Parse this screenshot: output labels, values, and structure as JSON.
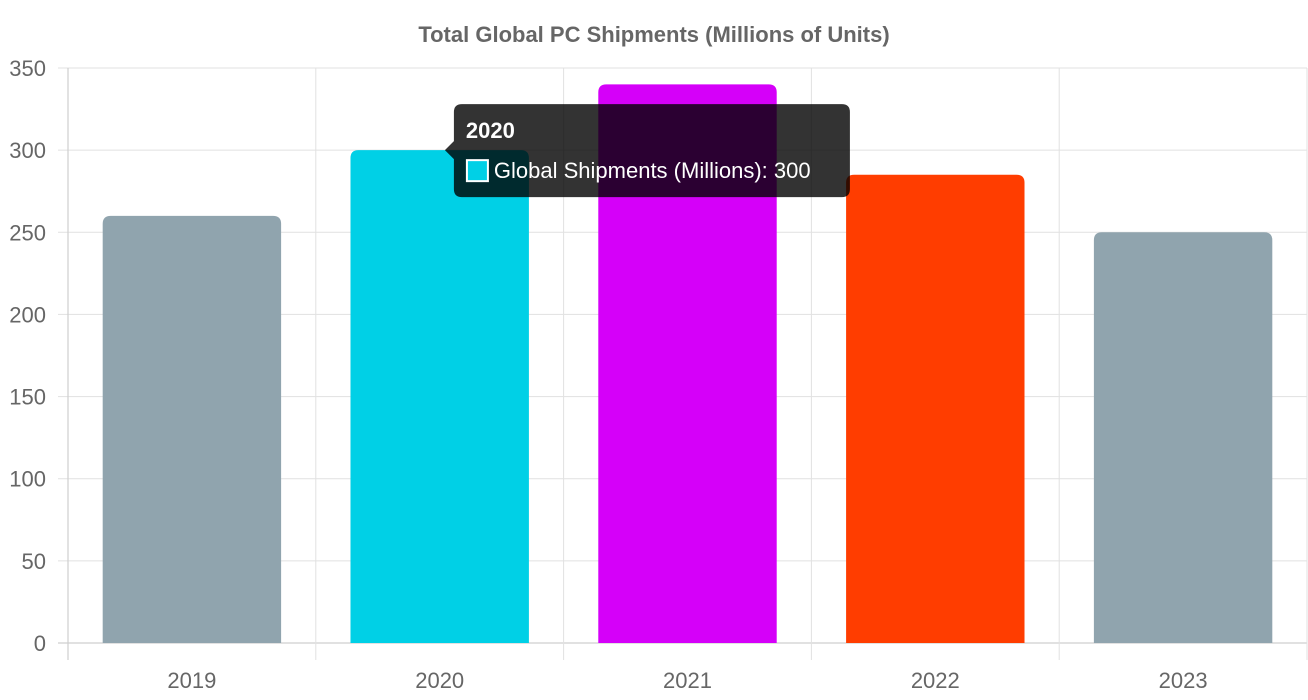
{
  "chart_data": {
    "type": "bar",
    "title": "Total Global PC Shipments (Millions of Units)",
    "xlabel": "",
    "ylabel": "",
    "categories": [
      "2019",
      "2020",
      "2021",
      "2022",
      "2023"
    ],
    "series": [
      {
        "name": "Global Shipments (Millions)",
        "values": [
          260,
          300,
          340,
          285,
          250
        ],
        "colors": [
          "#90a4ae",
          "#00d0e6",
          "#d500f9",
          "#ff3d00",
          "#90a4ae"
        ]
      }
    ],
    "ylim": [
      0,
      350
    ],
    "yticks": [
      0,
      50,
      100,
      150,
      200,
      250,
      300,
      350
    ],
    "grid": true,
    "legend": "none",
    "tooltip": {
      "category": "2020",
      "series": "Global Shipments (Millions)",
      "value": 300,
      "title": "2020",
      "label": "Global Shipments (Millions): 300",
      "swatch_color": "#00d0e6"
    }
  }
}
